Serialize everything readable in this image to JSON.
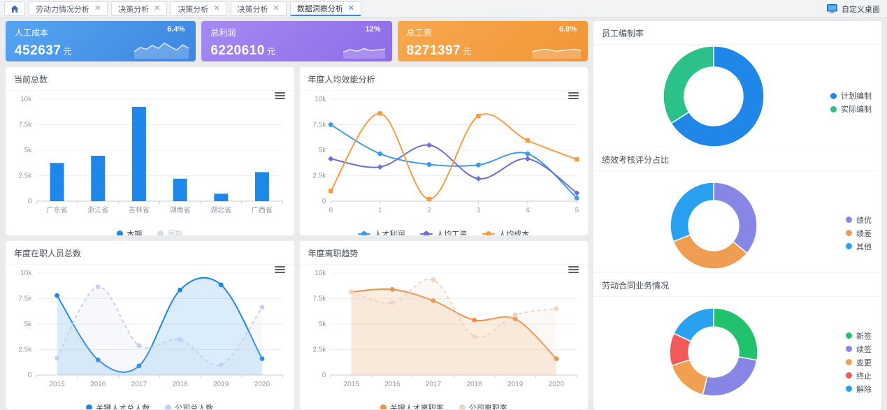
{
  "tabbar": {
    "home_icon": "house-icon",
    "items": [
      {
        "label": "劳动力情况分析",
        "active": false
      },
      {
        "label": "决策分析",
        "active": false
      },
      {
        "label": "决策分析",
        "active": false
      },
      {
        "label": "决策分析",
        "active": false
      },
      {
        "label": "数据洞察分析",
        "active": true
      }
    ],
    "close_glyph": "✕",
    "desktop_label": "自定义桌面"
  },
  "kpi_cards": [
    {
      "title": "人工成本",
      "value": "452637",
      "unit": "元",
      "percent": "6.4%",
      "color_from": "#57a4f2",
      "color_to": "#3e86e0",
      "spark": [
        70,
        40,
        52,
        25,
        46,
        8,
        35,
        58,
        22,
        45
      ],
      "spark_smooth": false
    },
    {
      "title": "总利润",
      "value": "6220610",
      "unit": "元",
      "percent": "12%",
      "color_from": "#a58af2",
      "color_to": "#8e6ce8",
      "spark": [
        62,
        35,
        52,
        26,
        46,
        38,
        30
      ],
      "spark_smooth": false
    },
    {
      "title": "总工资",
      "value": "8271397",
      "unit": "元",
      "percent": "6.8%",
      "color_from": "#f7a84e",
      "color_to": "#f29638",
      "spark": [
        58,
        42,
        34,
        40,
        52,
        44,
        38,
        34,
        46
      ],
      "spark_smooth": true
    }
  ],
  "chart_data": [
    {
      "id": "current-total",
      "type": "bar",
      "title": "当前总数",
      "categories": [
        "广东省",
        "浙江省",
        "吉林省",
        "湖南省",
        "湖北省",
        "广西省"
      ],
      "series": [
        {
          "name": "本期",
          "values": [
            3750,
            4450,
            9250,
            2200,
            730,
            2850
          ],
          "color": "#1f87e8",
          "selected": true
        },
        {
          "name": "同期",
          "values": [],
          "color": "#d6dde4",
          "selected": false
        }
      ],
      "ylim": [
        0,
        10000
      ],
      "yticks": [
        "0",
        "2.5k",
        "5k",
        "7.5k",
        "10k"
      ],
      "grid": true,
      "legend_position": "bottom"
    },
    {
      "id": "annual-efficiency",
      "type": "line",
      "title": "年度人均效能分析",
      "x": [
        "0",
        "1",
        "2",
        "3",
        "4",
        "5"
      ],
      "centered": false,
      "smooth": true,
      "series": [
        {
          "name": "人才利润",
          "values": [
            7500,
            4650,
            3600,
            3550,
            4650,
            300
          ],
          "color": "#3b9ae8",
          "symbol": "circle"
        },
        {
          "name": "人均工资",
          "values": [
            4150,
            3350,
            5500,
            2200,
            4150,
            800
          ],
          "color": "#6e6ed0",
          "symbol": "diamond"
        },
        {
          "name": "人均成本",
          "values": [
            1000,
            8600,
            200,
            8350,
            5950,
            4100
          ],
          "color": "#f59c42",
          "symbol": "rect"
        }
      ],
      "ylim": [
        0,
        10000
      ],
      "yticks": [
        "0",
        "2.5k",
        "5k",
        "7.5k",
        "10k"
      ],
      "grid": true,
      "legend_position": "bottom"
    },
    {
      "id": "annual-headcount",
      "type": "line",
      "title": "年度在职人员总数",
      "x": [
        "2015",
        "2016",
        "2017",
        "2018",
        "2019",
        "2020"
      ],
      "centered": true,
      "smooth": true,
      "series": [
        {
          "name": "关键人才总人数",
          "values": [
            7800,
            1500,
            900,
            8350,
            8850,
            1600
          ],
          "color": "#1f87e8",
          "symbol": "circle",
          "area": true
        },
        {
          "name": "公司总人数",
          "values": [
            1650,
            8650,
            2900,
            3500,
            1000,
            6650
          ],
          "color": "#c5d1ef",
          "symbol": "circle",
          "dashed": true,
          "area": true
        }
      ],
      "ylim": [
        0,
        10000
      ],
      "yticks": [
        "0",
        "2.5k",
        "5k",
        "7.5k",
        "10k"
      ],
      "grid": true,
      "legend_position": "bottom"
    },
    {
      "id": "annual-turnover",
      "type": "line",
      "title": "年度离职趋势",
      "x": [
        "2015",
        "2016",
        "2017",
        "2018",
        "2019",
        "2020"
      ],
      "centered": true,
      "smooth": true,
      "series": [
        {
          "name": "关键人才离职率",
          "values": [
            8150,
            8400,
            7300,
            5400,
            5500,
            1600
          ],
          "color": "#ef9045",
          "symbol": "circle",
          "area": true
        },
        {
          "name": "公司离职率",
          "values": [
            8150,
            7100,
            9350,
            3800,
            5900,
            6500
          ],
          "color": "#eed5c2",
          "symbol": "circle",
          "dashed": true,
          "area": true
        }
      ],
      "ylim": [
        0,
        10000
      ],
      "yticks": [
        "0",
        "2.5k",
        "5k",
        "7.5k",
        "10k"
      ],
      "grid": true,
      "legend_position": "bottom"
    },
    {
      "id": "staffing-rate",
      "type": "pie",
      "title": "员工编制率",
      "slices": [
        {
          "label": "计划编制",
          "value": 66,
          "color": "#1f87e8"
        },
        {
          "label": "实际编制",
          "value": 34,
          "color": "#2cc189"
        }
      ],
      "legend_position": "right"
    },
    {
      "id": "performance-score",
      "type": "pie",
      "title": "绩效考核评分占比",
      "slices": [
        {
          "label": "绩优",
          "value": 36,
          "color": "#8886e4"
        },
        {
          "label": "绩差",
          "value": 33,
          "color": "#f09d54"
        },
        {
          "label": "其他",
          "value": 31,
          "color": "#2aa1f0"
        }
      ],
      "legend_position": "right"
    },
    {
      "id": "labor-contract",
      "type": "pie",
      "title": "劳动合同业务情况",
      "slices": [
        {
          "label": "新签",
          "value": 28,
          "color": "#21c16d"
        },
        {
          "label": "续签",
          "value": 26,
          "color": "#8886e4"
        },
        {
          "label": "变更",
          "value": 16,
          "color": "#f0a050"
        },
        {
          "label": "终止",
          "value": 12,
          "color": "#f25a5a"
        },
        {
          "label": "解除",
          "value": 18,
          "color": "#2aa1f0"
        }
      ],
      "legend_position": "right"
    }
  ]
}
